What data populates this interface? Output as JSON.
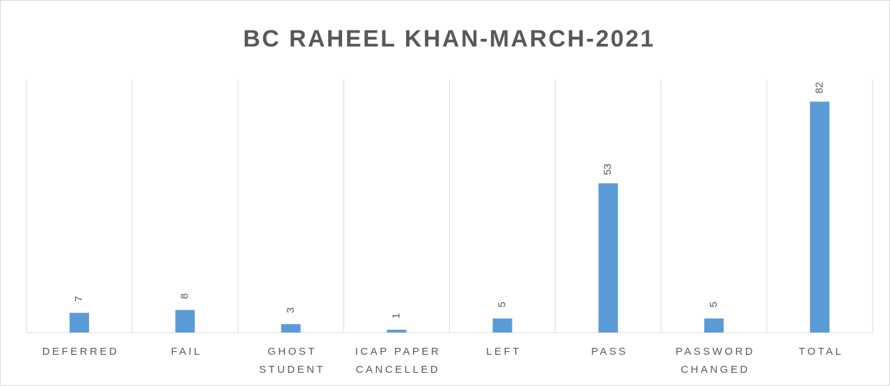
{
  "chart_data": {
    "type": "bar",
    "title": "BC RAHEEL KHAN-MARCH-2021",
    "categories": [
      "DEFERRED",
      "FAIL",
      "GHOST STUDENT",
      "ICAP PAPER CANCELLED",
      "LEFT",
      "PASS",
      "PASSWORD CHANGED",
      "TOTAL"
    ],
    "values": [
      7,
      8,
      3,
      1,
      5,
      53,
      5,
      82
    ],
    "color": "#5b9bd5",
    "ylim": [
      0,
      90
    ],
    "grid": true
  }
}
